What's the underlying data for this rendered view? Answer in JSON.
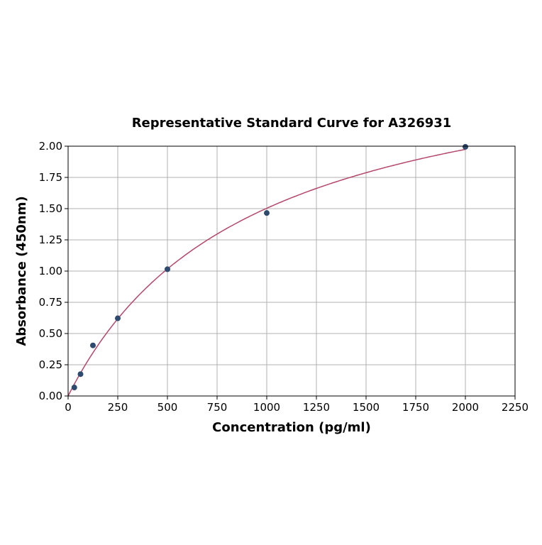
{
  "chart_data": {
    "type": "scatter",
    "title": "Representative Standard Curve for A326931",
    "xlabel": "Concentration (pg/ml)",
    "ylabel": "Absorbance (450nm)",
    "xlim": [
      0,
      2250
    ],
    "ylim": [
      0,
      2.0
    ],
    "xticks": [
      "0",
      "250",
      "500",
      "750",
      "1000",
      "1250",
      "1500",
      "1750",
      "2000",
      "2250"
    ],
    "yticks": [
      "0.00",
      "0.25",
      "0.50",
      "0.75",
      "1.00",
      "1.25",
      "1.50",
      "1.75",
      "2.00"
    ],
    "grid": true,
    "points": {
      "x": [
        31.25,
        62.5,
        125,
        250,
        500,
        1000,
        2000
      ],
      "y": [
        0.068,
        0.175,
        0.405,
        0.622,
        1.015,
        1.465,
        1.995
      ]
    },
    "fit_curve": true,
    "colors": {
      "points": "#2e4a6e",
      "curve": "#b5476b",
      "grid": "#b0b0b0"
    }
  }
}
